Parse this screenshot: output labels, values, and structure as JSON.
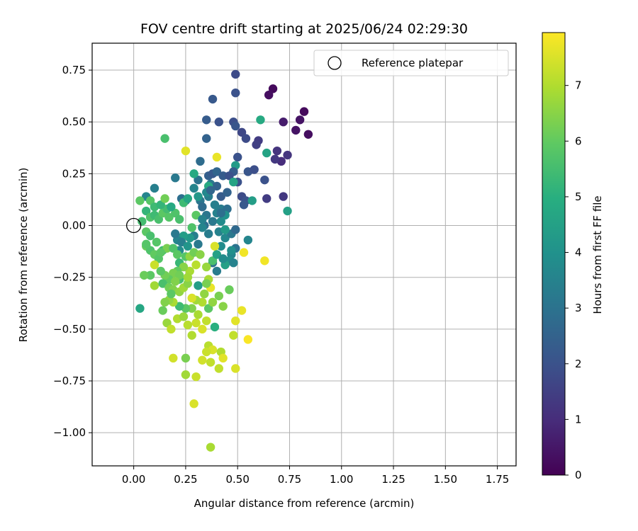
{
  "chart_data": {
    "type": "scatter",
    "title": "FOV centre drift starting at 2025/06/24 02:29:30",
    "xlabel": "Angular distance from reference (arcmin)",
    "ylabel": "Rotation from reference (arcmin)",
    "colorbar_label": "Hours from first FF file",
    "xlim": [
      -0.2,
      1.84
    ],
    "ylim": [
      -1.16,
      0.88
    ],
    "x_ticks": [
      "0.00",
      "0.25",
      "0.50",
      "0.75",
      "1.00",
      "1.25",
      "1.50",
      "1.75"
    ],
    "y_ticks": [
      "0.75",
      "0.50",
      "0.25",
      "0.00",
      "−0.25",
      "−0.50",
      "−0.75",
      "−1.00"
    ],
    "colorbar_ticks": [
      "0",
      "1",
      "2",
      "3",
      "4",
      "5",
      "6",
      "7"
    ],
    "colorbar_range": [
      0,
      7.95
    ],
    "grid": true,
    "legend": {
      "position": "top-right",
      "label": "Reference platepar"
    },
    "reference_point": {
      "x": 0.0,
      "y": 0.0
    },
    "points": [
      [
        0.49,
        0.73,
        1.8
      ],
      [
        0.67,
        0.66,
        0.2
      ],
      [
        0.65,
        0.63,
        0.3
      ],
      [
        0.82,
        0.55,
        0.2
      ],
      [
        0.8,
        0.51,
        0.4
      ],
      [
        0.72,
        0.5,
        0.6
      ],
      [
        0.84,
        0.44,
        0.3
      ],
      [
        0.78,
        0.46,
        0.4
      ],
      [
        0.49,
        0.64,
        2.0
      ],
      [
        0.38,
        0.61,
        2.2
      ],
      [
        0.35,
        0.51,
        2.3
      ],
      [
        0.41,
        0.5,
        2.0
      ],
      [
        0.48,
        0.5,
        1.9
      ],
      [
        0.49,
        0.48,
        2.1
      ],
      [
        0.52,
        0.45,
        1.7
      ],
      [
        0.54,
        0.42,
        1.8
      ],
      [
        0.6,
        0.41,
        1.4
      ],
      [
        0.59,
        0.39,
        1.5
      ],
      [
        0.35,
        0.42,
        2.5
      ],
      [
        0.61,
        0.51,
        4.8
      ],
      [
        0.64,
        0.35,
        4.6
      ],
      [
        0.69,
        0.36,
        1.2
      ],
      [
        0.71,
        0.31,
        1.0
      ],
      [
        0.74,
        0.34,
        1.2
      ],
      [
        0.68,
        0.32,
        1.3
      ],
      [
        0.5,
        0.33,
        2.0
      ],
      [
        0.32,
        0.31,
        2.8
      ],
      [
        0.49,
        0.29,
        4.3
      ],
      [
        0.48,
        0.26,
        2.3
      ],
      [
        0.55,
        0.26,
        2.1
      ],
      [
        0.58,
        0.27,
        1.9
      ],
      [
        0.63,
        0.22,
        2.0
      ],
      [
        0.36,
        0.24,
        2.4
      ],
      [
        0.38,
        0.25,
        2.2
      ],
      [
        0.4,
        0.26,
        2.6
      ],
      [
        0.43,
        0.24,
        2.3
      ],
      [
        0.46,
        0.24,
        2.0
      ],
      [
        0.5,
        0.21,
        2.0
      ],
      [
        0.48,
        0.21,
        4.6
      ],
      [
        0.37,
        0.2,
        3.2
      ],
      [
        0.4,
        0.19,
        2.5
      ],
      [
        0.31,
        0.22,
        3.0
      ],
      [
        0.2,
        0.23,
        3.2
      ],
      [
        0.29,
        0.25,
        4.8
      ],
      [
        0.1,
        0.18,
        3.4
      ],
      [
        0.06,
        0.14,
        3.6
      ],
      [
        0.23,
        0.13,
        2.9
      ],
      [
        0.25,
        0.12,
        3.0
      ],
      [
        0.32,
        0.12,
        3.1
      ],
      [
        0.36,
        0.14,
        3.3
      ],
      [
        0.42,
        0.14,
        2.3
      ],
      [
        0.45,
        0.16,
        2.5
      ],
      [
        0.52,
        0.14,
        1.8
      ],
      [
        0.54,
        0.12,
        2.0
      ],
      [
        0.53,
        0.1,
        2.2
      ],
      [
        0.57,
        0.12,
        4.4
      ],
      [
        0.64,
        0.13,
        1.4
      ],
      [
        0.72,
        0.14,
        1.3
      ],
      [
        0.74,
        0.07,
        4.5
      ],
      [
        0.36,
        0.19,
        4.8
      ],
      [
        0.33,
        0.09,
        2.8
      ],
      [
        0.35,
        0.05,
        3.1
      ],
      [
        0.38,
        0.02,
        3.2
      ],
      [
        0.4,
        0.06,
        3.5
      ],
      [
        0.42,
        0.08,
        3.3
      ],
      [
        0.45,
        0.08,
        2.9
      ],
      [
        0.42,
        0.02,
        3.8
      ],
      [
        0.44,
        0.05,
        4.0
      ],
      [
        0.34,
        0.0,
        2.9
      ],
      [
        0.36,
        -0.04,
        3.3
      ],
      [
        0.41,
        -0.03,
        3.5
      ],
      [
        0.44,
        -0.06,
        3.7
      ],
      [
        0.47,
        -0.04,
        3.2
      ],
      [
        0.49,
        -0.02,
        2.7
      ],
      [
        0.49,
        -0.11,
        3.0
      ],
      [
        0.47,
        -0.14,
        3.6
      ],
      [
        0.55,
        -0.07,
        3.6
      ],
      [
        0.42,
        -0.1,
        3.8
      ],
      [
        0.46,
        -0.17,
        3.9
      ],
      [
        0.48,
        -0.18,
        3.5
      ],
      [
        0.44,
        -0.19,
        4.5
      ],
      [
        0.4,
        -0.22,
        3.3
      ],
      [
        0.38,
        -0.18,
        3.0
      ],
      [
        0.31,
        -0.09,
        3.2
      ],
      [
        0.29,
        -0.05,
        3.4
      ],
      [
        0.33,
        -0.01,
        3.6
      ],
      [
        0.27,
        -0.06,
        4.2
      ],
      [
        0.24,
        -0.05,
        4.4
      ],
      [
        0.21,
        -0.07,
        3.6
      ],
      [
        0.2,
        -0.04,
        3.2
      ],
      [
        0.23,
        -0.08,
        3.4
      ],
      [
        0.22,
        -0.12,
        3.8
      ],
      [
        0.26,
        -0.1,
        4.1
      ],
      [
        0.06,
        0.07,
        5.2
      ],
      [
        0.04,
        0.02,
        5.5
      ],
      [
        0.08,
        0.04,
        5.7
      ],
      [
        0.1,
        0.05,
        5.4
      ],
      [
        0.12,
        0.03,
        5.6
      ],
      [
        0.14,
        0.06,
        5.9
      ],
      [
        0.16,
        0.08,
        5.5
      ],
      [
        0.17,
        0.04,
        5.8
      ],
      [
        0.2,
        0.06,
        5.7
      ],
      [
        0.22,
        0.03,
        5.6
      ],
      [
        0.24,
        0.11,
        5.4
      ],
      [
        0.26,
        0.13,
        4.7
      ],
      [
        0.3,
        0.05,
        5.9
      ],
      [
        0.28,
        -0.01,
        5.7
      ],
      [
        0.08,
        0.12,
        5.8
      ],
      [
        0.03,
        0.12,
        5.9
      ],
      [
        0.1,
        0.09,
        5.4
      ],
      [
        0.13,
        0.1,
        5.2
      ],
      [
        0.15,
        0.13,
        6.2
      ],
      [
        0.18,
        0.09,
        4.8
      ],
      [
        0.15,
        0.42,
        5.6
      ],
      [
        0.25,
        0.36,
        7.6
      ],
      [
        0.4,
        0.33,
        7.7
      ],
      [
        0.06,
        -0.03,
        5.9
      ],
      [
        0.08,
        -0.05,
        5.6
      ],
      [
        0.11,
        -0.08,
        5.8
      ],
      [
        0.06,
        -0.1,
        6.1
      ],
      [
        0.08,
        -0.12,
        5.7
      ],
      [
        0.1,
        -0.14,
        6.0
      ],
      [
        0.12,
        -0.16,
        5.8
      ],
      [
        0.14,
        -0.12,
        5.4
      ],
      [
        0.16,
        -0.11,
        6.3
      ],
      [
        0.19,
        -0.11,
        5.7
      ],
      [
        0.21,
        -0.14,
        5.9
      ],
      [
        0.22,
        -0.18,
        5.3
      ],
      [
        0.25,
        -0.15,
        5.8
      ],
      [
        0.27,
        -0.15,
        6.6
      ],
      [
        0.29,
        -0.13,
        6.2
      ],
      [
        0.32,
        -0.14,
        6.5
      ],
      [
        0.35,
        -0.2,
        6.7
      ],
      [
        0.3,
        -0.19,
        7.1
      ],
      [
        0.27,
        -0.22,
        6.9
      ],
      [
        0.24,
        -0.2,
        6.5
      ],
      [
        0.21,
        -0.22,
        6.0
      ],
      [
        0.19,
        -0.23,
        6.3
      ],
      [
        0.17,
        -0.26,
        6.0
      ],
      [
        0.15,
        -0.24,
        6.2
      ],
      [
        0.13,
        -0.22,
        5.9
      ],
      [
        0.1,
        -0.19,
        7.3
      ],
      [
        0.08,
        -0.24,
        5.9
      ],
      [
        0.05,
        -0.24,
        6.1
      ],
      [
        0.1,
        -0.29,
        6.8
      ],
      [
        0.14,
        -0.28,
        5.6
      ],
      [
        0.17,
        -0.3,
        6.2
      ],
      [
        0.19,
        -0.31,
        6.4
      ],
      [
        0.22,
        -0.32,
        6.6
      ],
      [
        0.24,
        -0.3,
        6.8
      ],
      [
        0.26,
        -0.28,
        6.5
      ],
      [
        0.31,
        -0.29,
        4.4
      ],
      [
        0.36,
        -0.26,
        6.9
      ],
      [
        0.37,
        -0.3,
        7.7
      ],
      [
        0.34,
        -0.33,
        6.6
      ],
      [
        0.33,
        -0.37,
        7.0
      ],
      [
        0.3,
        -0.36,
        6.8
      ],
      [
        0.28,
        -0.4,
        6.4
      ],
      [
        0.25,
        -0.4,
        5.9
      ],
      [
        0.22,
        -0.39,
        5.4
      ],
      [
        0.19,
        -0.37,
        6.9
      ],
      [
        0.17,
        -0.36,
        6.6
      ],
      [
        0.15,
        -0.37,
        6.4
      ],
      [
        0.14,
        -0.41,
        6.1
      ],
      [
        0.16,
        -0.47,
        6.7
      ],
      [
        0.18,
        -0.5,
        7.2
      ],
      [
        0.21,
        -0.45,
        7.0
      ],
      [
        0.24,
        -0.44,
        6.7
      ],
      [
        0.26,
        -0.48,
        7.1
      ],
      [
        0.28,
        -0.53,
        7.0
      ],
      [
        0.3,
        -0.47,
        7.3
      ],
      [
        0.33,
        -0.5,
        7.5
      ],
      [
        0.35,
        -0.46,
        7.2
      ],
      [
        0.36,
        -0.4,
        5.9
      ],
      [
        0.38,
        -0.37,
        6.6
      ],
      [
        0.41,
        -0.34,
        6.3
      ],
      [
        0.43,
        -0.39,
        6.5
      ],
      [
        0.46,
        -0.31,
        6.1
      ],
      [
        0.39,
        -0.49,
        5.0
      ],
      [
        0.36,
        -0.58,
        7.1
      ],
      [
        0.38,
        -0.6,
        7.5
      ],
      [
        0.35,
        -0.61,
        7.3
      ],
      [
        0.33,
        -0.65,
        7.4
      ],
      [
        0.37,
        -0.66,
        7.2
      ],
      [
        0.42,
        -0.61,
        7.0
      ],
      [
        0.43,
        -0.64,
        7.6
      ],
      [
        0.41,
        -0.69,
        7.2
      ],
      [
        0.49,
        -0.69,
        7.5
      ],
      [
        0.48,
        -0.53,
        7.2
      ],
      [
        0.49,
        -0.46,
        7.6
      ],
      [
        0.52,
        -0.41,
        7.7
      ],
      [
        0.55,
        -0.55,
        7.9
      ],
      [
        0.53,
        -0.13,
        7.8
      ],
      [
        0.63,
        -0.17,
        7.8
      ],
      [
        0.3,
        -0.73,
        7.3
      ],
      [
        0.25,
        -0.72,
        6.8
      ],
      [
        0.19,
        -0.64,
        7.4
      ],
      [
        0.25,
        -0.64,
        6.3
      ],
      [
        0.29,
        -0.86,
        7.5
      ],
      [
        0.37,
        -1.07,
        6.9
      ],
      [
        0.03,
        -0.4,
        4.7
      ],
      [
        0.13,
        -0.13,
        5.9
      ],
      [
        0.06,
        -0.09,
        5.8
      ],
      [
        0.22,
        -0.26,
        5.6
      ],
      [
        0.39,
        -0.1,
        7.5
      ],
      [
        0.26,
        -0.25,
        6.8
      ],
      [
        0.28,
        -0.35,
        7.5
      ],
      [
        0.31,
        -0.43,
        6.9
      ],
      [
        0.35,
        -0.28,
        6.3
      ],
      [
        0.38,
        -0.17,
        5.6
      ],
      [
        0.4,
        -0.14,
        4.5
      ],
      [
        0.43,
        -0.16,
        3.8
      ],
      [
        0.47,
        -0.12,
        3.9
      ],
      [
        0.44,
        -0.02,
        4.3
      ],
      [
        0.33,
        0.03,
        3.5
      ],
      [
        0.31,
        0.14,
        4.2
      ],
      [
        0.29,
        0.18,
        3.6
      ],
      [
        0.35,
        0.16,
        3.7
      ],
      [
        0.37,
        0.17,
        2.6
      ],
      [
        0.39,
        0.1,
        3.4
      ],
      [
        0.42,
        0.06,
        2.9
      ],
      [
        0.22,
        -0.24,
        6.2
      ],
      [
        0.2,
        -0.27,
        6.4
      ],
      [
        0.18,
        -0.33,
        5.9
      ]
    ]
  }
}
